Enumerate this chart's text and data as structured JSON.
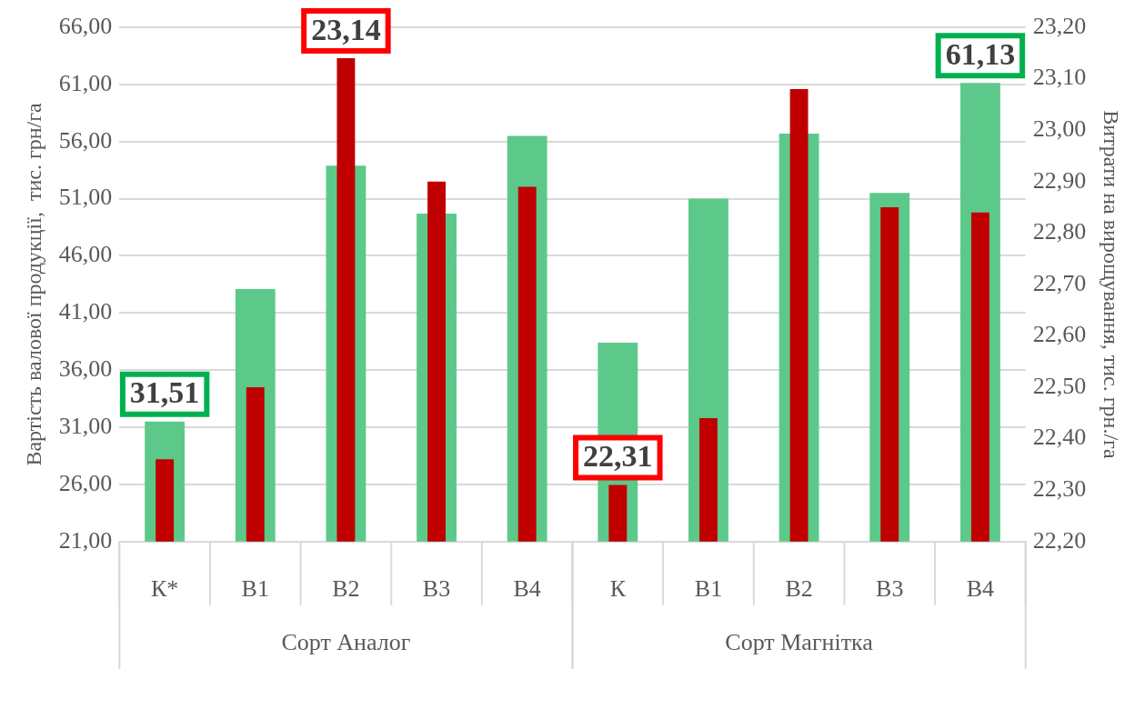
{
  "chart_data": {
    "type": "bar",
    "ylabel": "Вартість валової продукції,  тис. грн/га",
    "y2label": "Витрати на вирощування, тис. грн./га",
    "categories": [
      "К*",
      "В1",
      "В2",
      "В3",
      "В4",
      "К",
      "В1",
      "В2",
      "В3",
      "В4"
    ],
    "series": [
      {
        "axis": "y2",
        "color": "#c00000",
        "values": [
          22.36,
          22.5,
          23.14,
          22.9,
          22.89,
          22.31,
          22.44,
          23.08,
          22.85,
          22.84
        ],
        "value_labels": [
          null,
          null,
          "23,14",
          null,
          null,
          "22,31",
          null,
          null,
          null,
          null
        ]
      },
      {
        "color": "#5cc98a",
        "values": [
          31.51,
          43.1,
          53.9,
          49.7,
          56.5,
          38.4,
          51.0,
          56.7,
          51.5,
          61.13
        ],
        "value_labels": [
          "31,51",
          null,
          null,
          null,
          null,
          null,
          null,
          null,
          null,
          "61,13"
        ]
      }
    ],
    "annotations": [
      "Сорт Аналог",
      "Сорт Магнітка"
    ],
    "ylim": [
      21,
      66
    ],
    "yticks": [
      {
        "value": 21,
        "label": "21,00"
      },
      {
        "value": 26,
        "label": "26,00"
      },
      {
        "value": 31,
        "label": "31,00"
      },
      {
        "value": 36,
        "label": "36,00"
      },
      {
        "value": 41,
        "label": "41,00"
      },
      {
        "value": 46,
        "label": "46,00"
      },
      {
        "value": 51,
        "label": "51,00"
      },
      {
        "value": 56,
        "label": "56,00"
      },
      {
        "value": 61,
        "label": "61,00"
      },
      {
        "value": 66,
        "label": "66,00"
      }
    ],
    "y2lim": [
      22.2,
      23.2
    ],
    "y2ticks": [
      {
        "value": 22.2,
        "label": "22,20"
      },
      {
        "value": 22.3,
        "label": "22,30"
      },
      {
        "value": 22.4,
        "label": "22,40"
      },
      {
        "value": 22.5,
        "label": "22,50"
      },
      {
        "value": 22.6,
        "label": "22,60"
      },
      {
        "value": 22.7,
        "label": "22,70"
      },
      {
        "value": 22.8,
        "label": "22,80"
      },
      {
        "value": 22.9,
        "label": "22,90"
      },
      {
        "value": 23.0,
        "label": "23,00"
      },
      {
        "value": 23.1,
        "label": "23,10"
      },
      {
        "value": 23.2,
        "label": "23,20"
      }
    ],
    "grid": "y",
    "legend": false
  }
}
